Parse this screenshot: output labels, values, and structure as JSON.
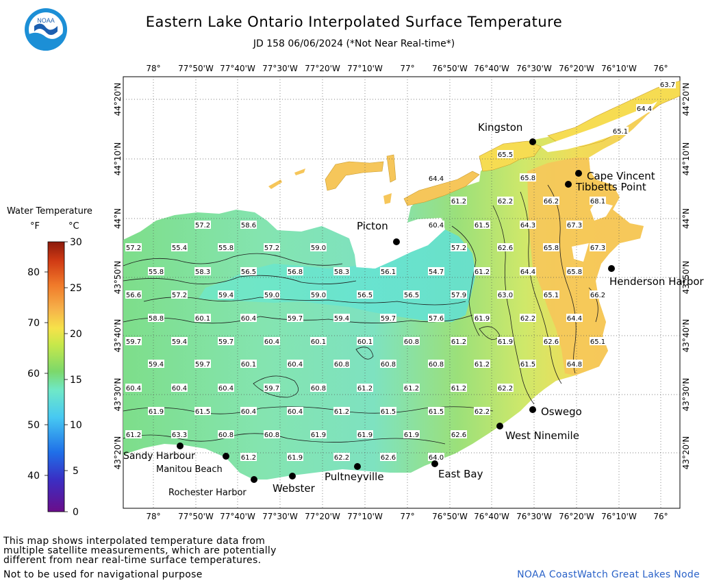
{
  "header": {
    "title": "Eastern Lake Ontario Interpolated Surface Temperature",
    "subtitle": "JD 158 06/06/2024 (*Not Near Real-time*)"
  },
  "logo": {
    "text": "NOAA"
  },
  "axes": {
    "longitudes": [
      "78°",
      "77°50'W",
      "77°40'W",
      "77°30'W",
      "77°20'W",
      "77°10'W",
      "77°",
      "76°50'W",
      "76°40'W",
      "76°30'W",
      "76°20'W",
      "76°10'W",
      "76°"
    ],
    "latitudes": [
      "44°20'N",
      "44°10'N",
      "44°N",
      "43°50'N",
      "43°40'N",
      "43°30'N",
      "43°20'N"
    ]
  },
  "legend": {
    "title": "Water Temperature",
    "unit_f": "°F",
    "unit_c": "°C",
    "f_ticks": [
      "80",
      "70",
      "60",
      "50",
      "40"
    ],
    "c_ticks": [
      "30",
      "25",
      "20",
      "15",
      "10",
      "5",
      "0"
    ],
    "colors": [
      "#6a0d8a",
      "#3a2fc4",
      "#1f6fe8",
      "#47c9f2",
      "#6fe8c8",
      "#7cd86a",
      "#c8e84a",
      "#f6e24a",
      "#f6b24a",
      "#f07a2a",
      "#d03a14",
      "#8c1a0c"
    ]
  },
  "places": [
    {
      "name": "Kingston"
    },
    {
      "name": "Cape Vincent"
    },
    {
      "name": "Tibbetts Point"
    },
    {
      "name": "Picton"
    },
    {
      "name": "Henderson Harbor"
    },
    {
      "name": "Oswego"
    },
    {
      "name": "West Ninemile"
    },
    {
      "name": "East Bay"
    },
    {
      "name": "Pultneyville"
    },
    {
      "name": "Webster"
    },
    {
      "name": "Rochester Harbor"
    },
    {
      "name": "Manitou Beach"
    },
    {
      "name": "Sandy Harbour"
    }
  ],
  "temperature_labels": [
    "63.7",
    "64.4",
    "65.1",
    "65.5",
    "64.4",
    "65.8",
    "61.2",
    "62.2",
    "66.2",
    "68.1",
    "57.2",
    "58.6",
    "60.4",
    "61.5",
    "64.3",
    "67.3",
    "57.2",
    "55.4",
    "55.8",
    "57.2",
    "59.0",
    "57.2",
    "62.6",
    "65.8",
    "67.3",
    "55.8",
    "58.3",
    "56.5",
    "56.8",
    "58.3",
    "56.1",
    "54.7",
    "61.2",
    "64.4",
    "65.8",
    "56.6",
    "57.2",
    "59.4",
    "59.0",
    "59.0",
    "56.5",
    "56.5",
    "57.9",
    "63.0",
    "65.1",
    "66.2",
    "58.8",
    "60.1",
    "60.4",
    "59.7",
    "59.4",
    "59.7",
    "57.6",
    "61.9",
    "62.2",
    "64.4",
    "59.7",
    "59.4",
    "59.7",
    "60.4",
    "60.1",
    "60.1",
    "60.8",
    "61.2",
    "61.9",
    "62.6",
    "65.1",
    "59.4",
    "59.7",
    "60.1",
    "60.4",
    "60.8",
    "60.8",
    "60.8",
    "61.2",
    "61.5",
    "64.8",
    "60.4",
    "60.4",
    "60.4",
    "59.7",
    "60.8",
    "61.2",
    "61.2",
    "61.2",
    "62.2",
    "61.9",
    "61.5",
    "60.4",
    "60.4",
    "61.2",
    "61.5",
    "61.5",
    "62.2",
    "61.2",
    "63.3",
    "60.8",
    "60.8",
    "61.9",
    "61.9",
    "61.9",
    "62.6",
    "61.2",
    "61.9",
    "62.2",
    "62.6",
    "64.0"
  ],
  "notes": {
    "line1": "This map shows interpolated temperature data from",
    "line2": "multiple satellite measurements, which are potentially",
    "line3": "different from near real-time surface temperatures.",
    "line4": "Not to be used for navigational purpose"
  },
  "credit": "NOAA CoastWatch Great Lakes Node"
}
